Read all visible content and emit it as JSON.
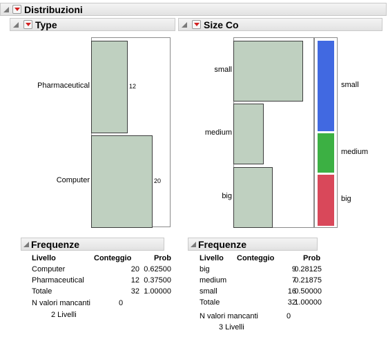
{
  "report": {
    "title": "Distribuzioni"
  },
  "type_panel": {
    "title": "Type",
    "bars": [
      {
        "label": "Pharmaceutical",
        "count": 12,
        "count_label": "12"
      },
      {
        "label": "Computer",
        "count": 20,
        "count_label": "20"
      }
    ],
    "freq": {
      "title": "Frequenze",
      "headers": {
        "level": "Livello",
        "count": "Conteggio",
        "prob": "Prob"
      },
      "rows": [
        {
          "level": "Computer",
          "count": "20",
          "prob": "0.62500"
        },
        {
          "level": "Pharmaceutical",
          "count": "12",
          "prob": "0.37500"
        },
        {
          "level": "Totale",
          "count": "32",
          "prob": "1.00000"
        }
      ],
      "missing_label": "N valori mancanti",
      "missing_value": "0",
      "levels_text": "2  Livelli"
    }
  },
  "size_panel": {
    "title": "Size Co",
    "bars": [
      {
        "label": "small",
        "count": 16
      },
      {
        "label": "medium",
        "count": 7
      },
      {
        "label": "big",
        "count": 9
      }
    ],
    "mosaic": [
      {
        "label": "small",
        "color": "#4169e1",
        "prob": 0.5
      },
      {
        "label": "medium",
        "color": "#3cb043",
        "prob": 0.21875
      },
      {
        "label": "big",
        "color": "#d9485a",
        "prob": 0.28125
      }
    ],
    "freq": {
      "title": "Frequenze",
      "headers": {
        "level": "Livello",
        "count": "Conteggio",
        "prob": "Prob"
      },
      "rows": [
        {
          "level": "big",
          "count": "9",
          "prob": "0.28125"
        },
        {
          "level": "medium",
          "count": "7",
          "prob": "0.21875"
        },
        {
          "level": "small",
          "count": "16",
          "prob": "0.50000"
        },
        {
          "level": "Totale",
          "count": "32",
          "prob": "1.00000"
        }
      ],
      "missing_label": "N valori mancanti",
      "missing_value": "0",
      "levels_text": "3  Livelli"
    }
  },
  "chart_data": [
    {
      "type": "bar",
      "orientation": "horizontal",
      "categories": [
        "Pharmaceutical",
        "Computer"
      ],
      "values": [
        12,
        20
      ],
      "title": "Type"
    },
    {
      "type": "bar",
      "orientation": "horizontal",
      "categories": [
        "small",
        "medium",
        "big"
      ],
      "values": [
        16,
        7,
        9
      ],
      "title": "Size Co"
    }
  ]
}
